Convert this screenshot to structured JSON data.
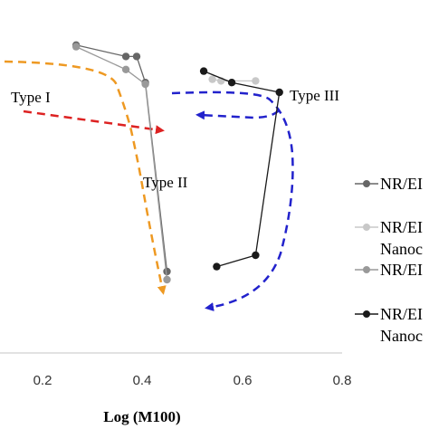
{
  "chart_data": {
    "type": "scatter",
    "title": "",
    "xlabel": "Log (M100)",
    "ylabel": "",
    "xlim": [
      0.0,
      0.8
    ],
    "ylim": [
      0,
      1
    ],
    "x_ticks": [
      "0.2",
      "0.4",
      "0.6",
      "0.8"
    ],
    "grid": false,
    "legend_position": "right",
    "series": [
      {
        "name": "NR/EI",
        "color": "#666666",
        "points": [
          [
            0.185,
            0.945
          ],
          [
            0.3,
            0.91
          ],
          [
            0.325,
            0.91
          ],
          [
            0.345,
            0.83
          ],
          [
            0.395,
            0.25
          ]
        ]
      },
      {
        "name": "NR/EI Nanoc",
        "color": "#c8c8c8",
        "points": [
          [
            0.5,
            0.84
          ],
          [
            0.52,
            0.835
          ],
          [
            0.6,
            0.835
          ]
        ]
      },
      {
        "name": "NR/EI",
        "color": "#999999",
        "points": [
          [
            0.185,
            0.94
          ],
          [
            0.3,
            0.87
          ],
          [
            0.345,
            0.825
          ],
          [
            0.395,
            0.225
          ]
        ]
      },
      {
        "name": "NR/EI Nanoc",
        "color": "#1a1a1a",
        "points": [
          [
            0.48,
            0.865
          ],
          [
            0.545,
            0.83
          ],
          [
            0.655,
            0.8
          ],
          [
            0.6,
            0.3
          ],
          [
            0.51,
            0.265
          ]
        ]
      }
    ],
    "annotations": [
      {
        "text": "Type I",
        "color": "#dd2222",
        "arrow": [
          [
            0.08,
            0.89
          ],
          [
            0.43,
            0.735
          ]
        ]
      },
      {
        "text": "Type II",
        "color": "#ee9922",
        "arrow": [
          [
            0.0,
            0.96
          ],
          [
            0.42,
            0.23
          ]
        ]
      },
      {
        "text": "Type III",
        "color": "#2222cc",
        "arrow": [
          [
            0.47,
            0.87
          ],
          [
            0.52,
            0.16
          ]
        ]
      },
      {
        "text": "",
        "color": "#2222cc",
        "arrow": [
          [
            0.66,
            0.81
          ],
          [
            0.52,
            0.8
          ]
        ]
      }
    ]
  },
  "legend": {
    "items": [
      {
        "line1": "NR/EI",
        "line2": ""
      },
      {
        "line1": "NR/EI",
        "line2": "Nanoc"
      },
      {
        "line1": "NR/EI",
        "line2": ""
      },
      {
        "line1": "NR/EI",
        "line2": "Nanoc"
      }
    ]
  }
}
